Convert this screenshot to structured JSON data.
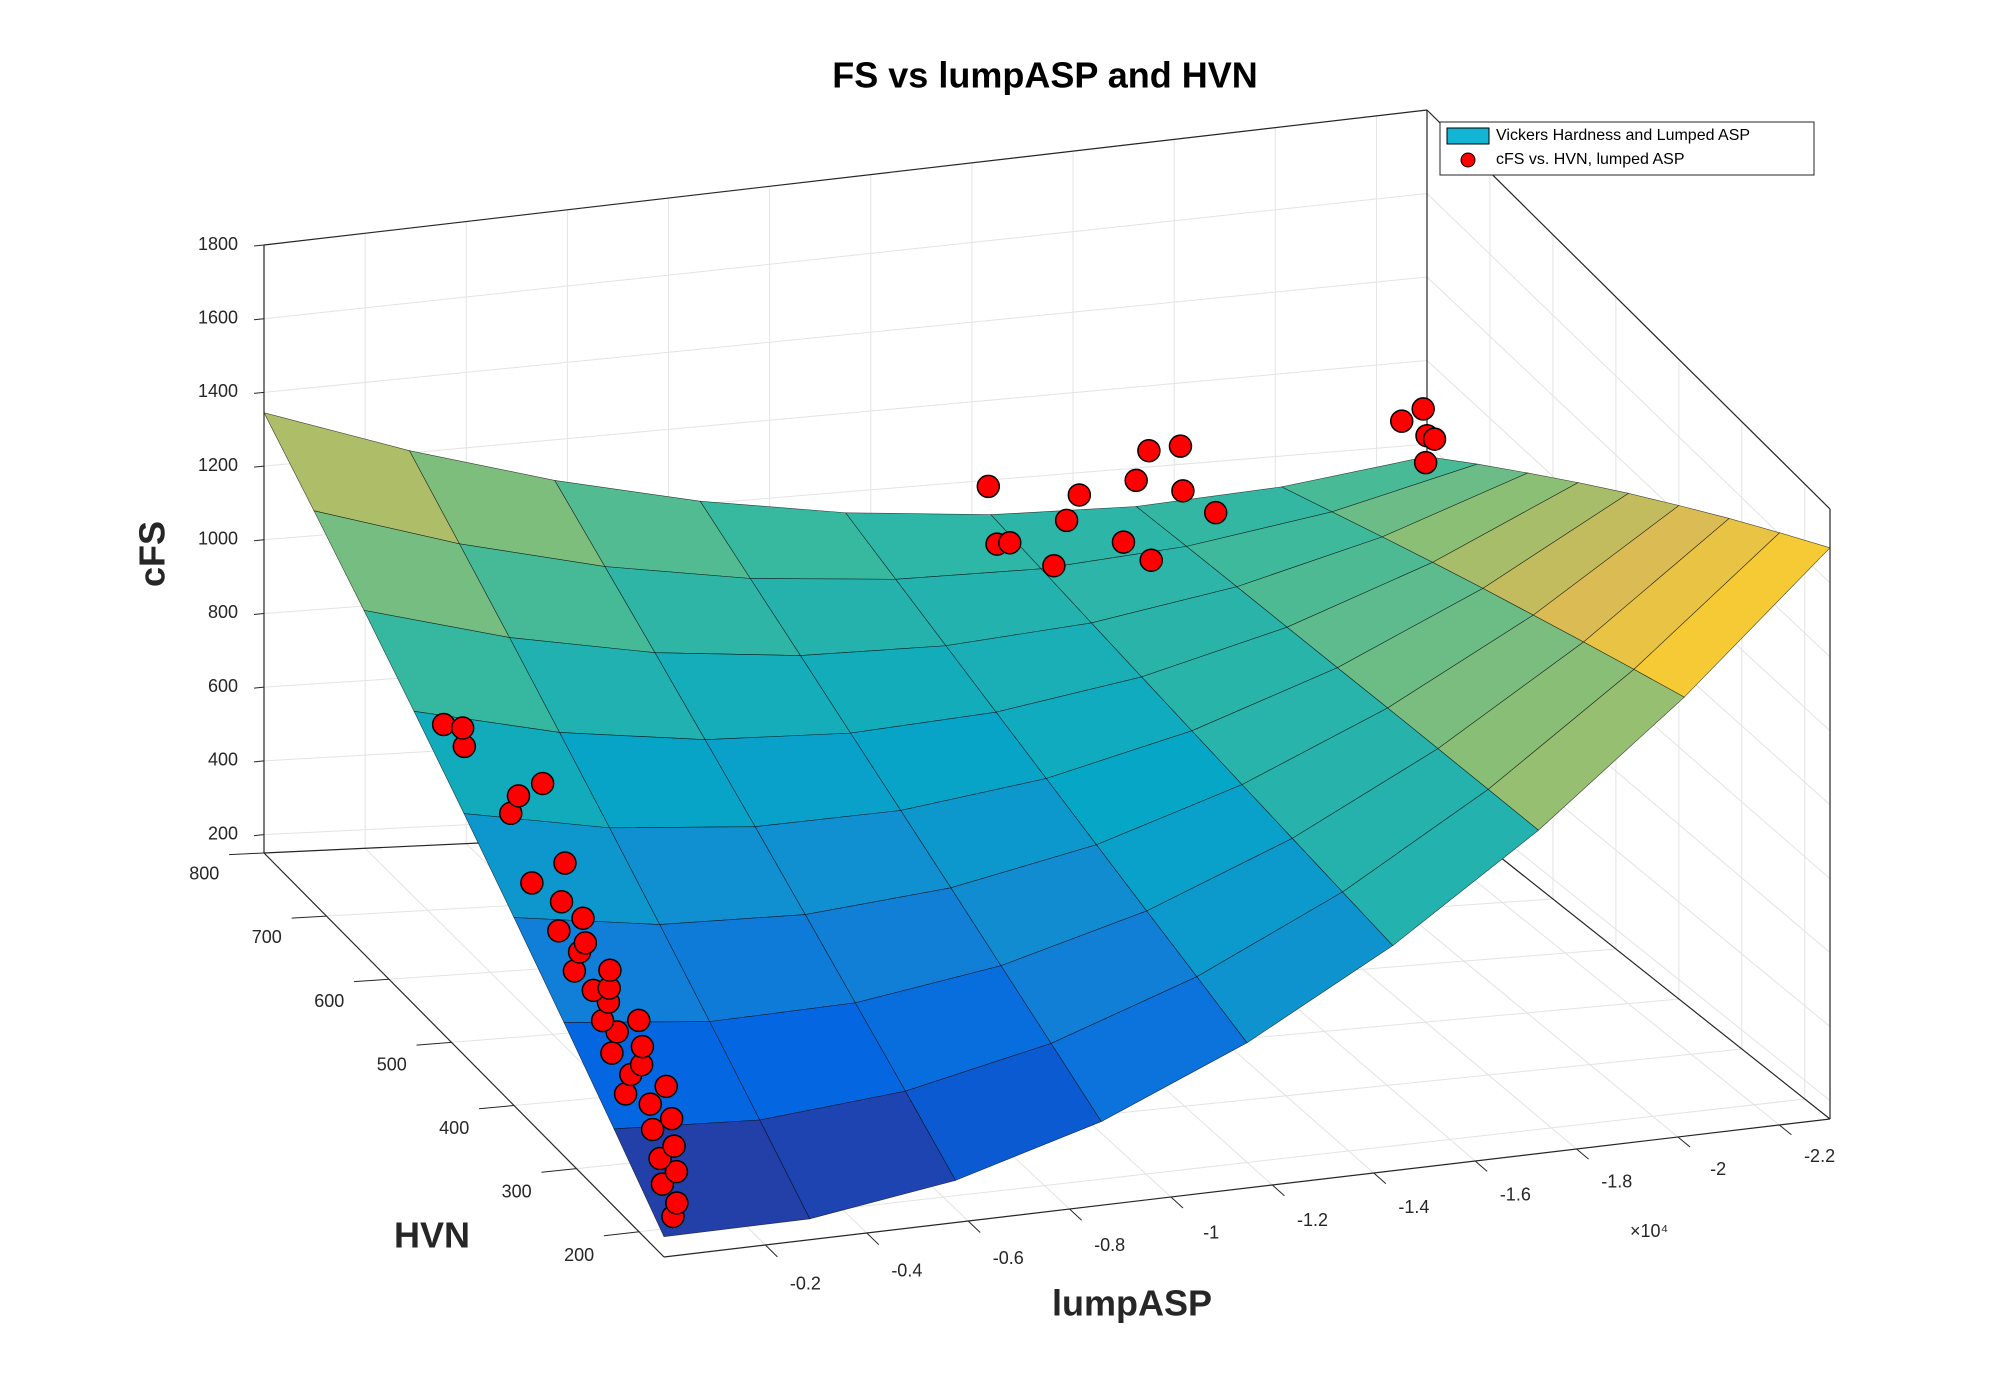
{
  "chart_data": {
    "type": "surface3d",
    "title": "FS vs lumpASP and HVN",
    "x_label": "lumpASP",
    "y_label": "HVN",
    "z_label": "cFS",
    "x_exponent_label": "×10⁴",
    "xlim": [
      0,
      -23000
    ],
    "ylim": [
      160,
      800
    ],
    "zlim": [
      150,
      1800
    ],
    "xticks": [
      {
        "value": -2000,
        "label": "-0.2"
      },
      {
        "value": -4000,
        "label": "-0.4"
      },
      {
        "value": -6000,
        "label": "-0.6"
      },
      {
        "value": -8000,
        "label": "-0.8"
      },
      {
        "value": -10000,
        "label": "-1"
      },
      {
        "value": -12000,
        "label": "-1.2"
      },
      {
        "value": -14000,
        "label": "-1.4"
      },
      {
        "value": -16000,
        "label": "-1.6"
      },
      {
        "value": -18000,
        "label": "-1.8"
      },
      {
        "value": -20000,
        "label": "-2"
      },
      {
        "value": -22000,
        "label": "-2.2"
      }
    ],
    "yticks": [
      200,
      300,
      400,
      500,
      600,
      700,
      800
    ],
    "zticks": [
      200,
      400,
      600,
      800,
      1000,
      1200,
      1400,
      1600,
      1800
    ],
    "grid": true,
    "legend": "upper right",
    "series": [
      {
        "name": "Vickers Hardness and Lumped ASP",
        "type": "surface",
        "color": "#13b4d4",
        "edge_color": "#000000",
        "colormap": [
          "#352a87",
          "#0363e1",
          "#1485d4",
          "#06a7c6",
          "#38b99e",
          "#92bf73",
          "#d9ba56",
          "#fcce2e",
          "#f9fb0e"
        ],
        "x": [
          0,
          -2875,
          -5750,
          -8625,
          -11500,
          -14375,
          -17250,
          -20125,
          -23000
        ],
        "y": [
          160,
          240,
          320,
          400,
          480,
          560,
          640,
          720,
          800
        ],
        "z": [
          [
            200,
            202,
            256,
            363,
            524,
            737,
            1003,
            1323,
            1695
          ],
          [
            343,
            327,
            361,
            444,
            577,
            759,
            991,
            1273,
            1604
          ],
          [
            486,
            453,
            465,
            524,
            629,
            781,
            979,
            1223,
            1514
          ],
          [
            629,
            578,
            570,
            605,
            682,
            803,
            967,
            1173,
            1423
          ],
          [
            773,
            704,
            675,
            685,
            735,
            825,
            954,
            1124,
            1333
          ],
          [
            916,
            829,
            779,
            765,
            788,
            847,
            942,
            1074,
            1242
          ],
          [
            1059,
            955,
            884,
            846,
            841,
            869,
            930,
            1024,
            1151
          ],
          [
            1202,
            1080,
            988,
            926,
            894,
            891,
            918,
            974,
            1061
          ],
          [
            1345,
            1206,
            1093,
            1007,
            947,
            913,
            905,
            925,
            970
          ]
        ]
      },
      {
        "name": "cFS vs. HVN, lumped ASP",
        "type": "scatter",
        "color": "#ff0000",
        "edge_color": "#000000",
        "x": [
          -300,
          -500,
          -400,
          -800,
          -600,
          -1000,
          -700,
          -1200,
          -900,
          -500,
          -1400,
          -800,
          -1100,
          -600,
          -1300,
          -900,
          -700,
          -1500,
          -1000,
          -800,
          -1200,
          -600,
          -1400,
          -900,
          -1100,
          -700,
          -1300,
          -1000,
          -600,
          -1500,
          -800,
          -1200,
          -500,
          -1800,
          -400,
          -900,
          -14000,
          -14500,
          -15000,
          -14200,
          -15500,
          -16000,
          -16500,
          -17000,
          -17500,
          -17800,
          -18000,
          -16800,
          -18200,
          -22500,
          -22800,
          -23000,
          -22600,
          -22900
        ],
        "y": [
          170,
          180,
          195,
          205,
          215,
          225,
          235,
          245,
          255,
          262,
          270,
          278,
          285,
          292,
          300,
          308,
          315,
          322,
          330,
          338,
          345,
          352,
          360,
          368,
          375,
          385,
          395,
          405,
          420,
          440,
          470,
          490,
          520,
          500,
          545,
          555,
          760,
          780,
          750,
          790,
          770,
          790,
          760,
          780,
          800,
          770,
          790,
          740,
          750,
          800,
          790,
          800,
          770,
          780
        ],
        "z": [
          230,
          245,
          270,
          280,
          300,
          310,
          340,
          345,
          370,
          390,
          385,
          410,
          420,
          445,
          440,
          470,
          490,
          470,
          510,
          530,
          520,
          560,
          540,
          580,
          590,
          610,
          620,
          650,
          680,
          690,
          780,
          790,
          880,
          800,
          900,
          870,
          900,
          870,
          850,
          1000,
          930,
          960,
          880,
          1000,
          1040,
          980,
          1060,
          860,
          950,
          1060,
          1100,
          1020,
          1000,
          1040
        ]
      }
    ]
  }
}
